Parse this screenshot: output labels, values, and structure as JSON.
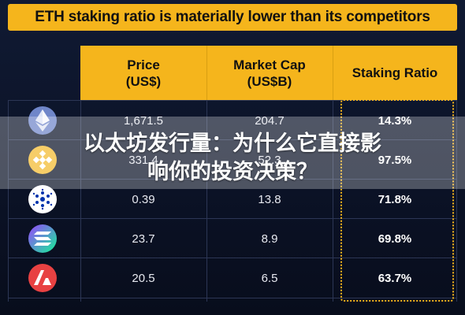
{
  "title": "ETH staking ratio is materially lower than its competitors",
  "columns": [
    "Price\n(US$)",
    "Market Cap\n(US$B)",
    "Staking Ratio"
  ],
  "column_lines": [
    [
      "Price",
      "(US$)"
    ],
    [
      "Market Cap",
      "(US$B)"
    ],
    [
      "Staking Ratio"
    ]
  ],
  "rows": [
    {
      "icon": "ethereum-icon",
      "color": "#6f86c9",
      "price": "1,671.5",
      "market_cap": "204.7",
      "staking_ratio": "14.3%"
    },
    {
      "icon": "bnb-icon",
      "color": "#f3ba2f",
      "price": "331.4",
      "market_cap": "52.3",
      "staking_ratio": "97.5%"
    },
    {
      "icon": "cardano-icon",
      "color": "#ffffff",
      "price": "0.39",
      "market_cap": "13.8",
      "staking_ratio": "71.8%"
    },
    {
      "icon": "solana-icon",
      "color": "#9945ff",
      "price": "23.7",
      "market_cap": "8.9",
      "staking_ratio": "69.8%"
    },
    {
      "icon": "avalanche-icon",
      "color": "#e84142",
      "price": "20.5",
      "market_cap": "6.5",
      "staking_ratio": "63.7%"
    }
  ],
  "overlay": {
    "line1": "以太坊发行量：为什么它直接影",
    "line2": "响你的投资决策？"
  },
  "colors": {
    "accent": "#f5b51c",
    "background": "#0b1226",
    "grid": "#2c3655"
  }
}
